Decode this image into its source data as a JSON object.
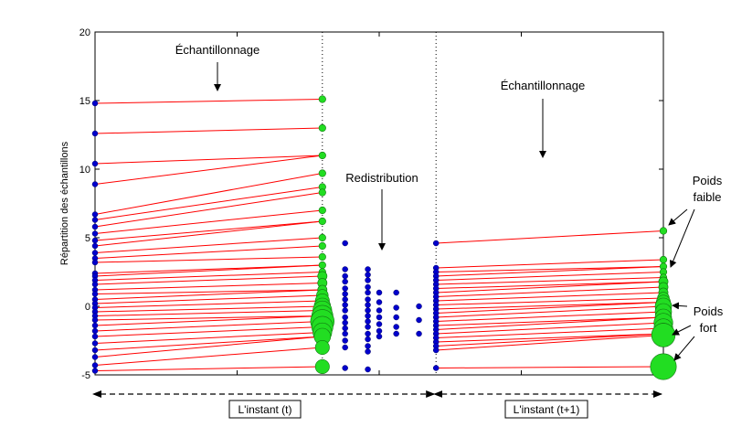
{
  "chart_data": {
    "type": "scatter",
    "ylabel": "Répartition des échantillons",
    "ylim": [
      -5,
      20
    ],
    "xlim": [
      0,
      10
    ],
    "y_ticks": [
      "-5",
      "0",
      "5",
      "10",
      "15",
      "20"
    ],
    "grid": false,
    "stage_columns": {
      "start": 0,
      "t_end": 4,
      "resample_mid": 5,
      "t1_start": 6,
      "t1_end": 10
    },
    "start_points": [
      14.8,
      12.6,
      10.4,
      8.9,
      6.7,
      6.3,
      5.8,
      5.3,
      4.8,
      4.4,
      3.9,
      3.5,
      3.2,
      2.4,
      2.2,
      1.9,
      1.6,
      1.2,
      0.9,
      0.5,
      0.2,
      -0.1,
      -0.4,
      -0.7,
      -1.0,
      -1.4,
      -1.8,
      -2.2,
      -2.7,
      -3.2,
      -3.7,
      -4.3,
      -4.7
    ],
    "weighted_points": [
      {
        "y": 15.1,
        "w": 1
      },
      {
        "y": 13.0,
        "w": 1
      },
      {
        "y": 11.0,
        "w": 1
      },
      {
        "y": 9.7,
        "w": 1
      },
      {
        "y": 8.7,
        "w": 1
      },
      {
        "y": 8.3,
        "w": 1
      },
      {
        "y": 7.0,
        "w": 1
      },
      {
        "y": 6.2,
        "w": 1
      },
      {
        "y": 5.0,
        "w": 1
      },
      {
        "y": 4.4,
        "w": 1
      },
      {
        "y": 3.6,
        "w": 1
      },
      {
        "y": 3.0,
        "w": 1
      },
      {
        "y": 2.5,
        "w": 1
      },
      {
        "y": 2.2,
        "w": 2
      },
      {
        "y": 1.7,
        "w": 2
      },
      {
        "y": 1.2,
        "w": 2
      },
      {
        "y": 0.8,
        "w": 3
      },
      {
        "y": 0.4,
        "w": 4
      },
      {
        "y": 0.0,
        "w": 5
      },
      {
        "y": -0.3,
        "w": 6
      },
      {
        "y": -0.7,
        "w": 7
      },
      {
        "y": -1.1,
        "w": 8
      },
      {
        "y": -1.5,
        "w": 7
      },
      {
        "y": -1.9,
        "w": 6
      },
      {
        "y": -2.2,
        "w": 5
      },
      {
        "y": -3.0,
        "w": 4
      },
      {
        "y": -4.4,
        "w": 4
      }
    ],
    "redistributed_a": [
      4.6,
      2.7,
      2.2,
      1.8,
      1.3,
      0.9,
      0.5,
      0.1,
      -0.3,
      -0.8,
      -1.2,
      -1.6,
      -2.0,
      -2.5,
      -3.0,
      -4.5
    ],
    "redistributed_b": [
      2.7,
      2.3,
      1.9,
      1.4,
      1.0,
      0.5,
      0.1,
      -0.3,
      -0.7,
      -1.1,
      -1.5,
      -2.0,
      -2.4,
      -2.9,
      -3.3,
      -4.6
    ],
    "redistributed_c": [
      1.0,
      0.3,
      -0.3,
      -0.8,
      -1.3,
      -1.8,
      -2.2
    ],
    "redistributed_d": [
      1.0,
      -0.1,
      -0.8,
      -1.5,
      -2.0
    ],
    "redistributed_e": [
      0.0,
      -1.0,
      -2.0
    ],
    "column_t1_start": [
      4.6,
      2.8,
      2.5,
      2.2,
      1.9,
      1.6,
      1.3,
      1.0,
      0.7,
      0.4,
      0.1,
      -0.2,
      -0.5,
      -0.8,
      -1.1,
      -1.4,
      -1.7,
      -2.0,
      -2.3,
      -2.6,
      -2.9,
      -3.2,
      -4.5
    ],
    "final_weighted_points": [
      {
        "y": 5.5,
        "w": 1
      },
      {
        "y": 3.4,
        "w": 1
      },
      {
        "y": 2.9,
        "w": 1
      },
      {
        "y": 2.5,
        "w": 1
      },
      {
        "y": 2.1,
        "w": 1
      },
      {
        "y": 1.8,
        "w": 2
      },
      {
        "y": 1.4,
        "w": 2
      },
      {
        "y": 1.0,
        "w": 2
      },
      {
        "y": 0.6,
        "w": 3
      },
      {
        "y": 0.3,
        "w": 4
      },
      {
        "y": 0.0,
        "w": 5
      },
      {
        "y": -0.4,
        "w": 5
      },
      {
        "y": -0.8,
        "w": 5
      },
      {
        "y": -1.2,
        "w": 6
      },
      {
        "y": -1.6,
        "w": 6
      },
      {
        "y": -2.0,
        "w": 7
      },
      {
        "y": -2.1,
        "w": 8
      },
      {
        "y": -4.4,
        "w": 9
      }
    ],
    "annotations": {
      "sampling_left": "Échantillonnage",
      "sampling_right": "Échantillonnage",
      "redistribution": "Redistribution",
      "weak_weight": [
        "Poids",
        "faible"
      ],
      "strong_weight": [
        "Poids",
        "fort"
      ]
    },
    "instants": [
      "L'instant (t)",
      "L'instant (t+1)"
    ]
  },
  "colors": {
    "line": "#ff0000",
    "blue_point": "#0000cc",
    "green_point": "#22dd22",
    "axis": "#000000"
  }
}
